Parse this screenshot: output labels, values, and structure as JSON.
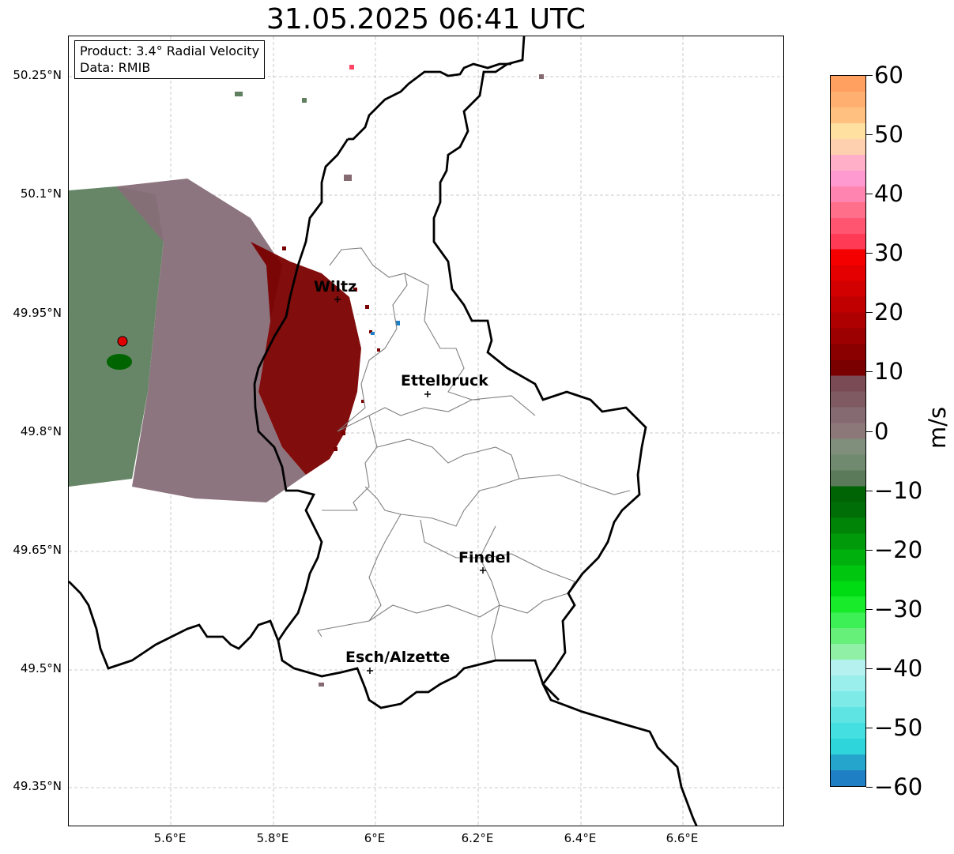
{
  "title": "31.05.2025 06:41 UTC",
  "info": {
    "product": "Product: 3.4° Radial Velocity",
    "data_source": "Data: RMIB"
  },
  "axes": {
    "y_ticks": [
      "50.25°N",
      "50.1°N",
      "49.95°N",
      "49.8°N",
      "49.65°N",
      "49.5°N",
      "49.35°N"
    ],
    "x_ticks": [
      "5.6°E",
      "5.8°E",
      "6°E",
      "6.2°E",
      "6.4°E",
      "6.6°E"
    ]
  },
  "cities": [
    {
      "name": "Wiltz"
    },
    {
      "name": "Ettelbruck"
    },
    {
      "name": "Findel"
    },
    {
      "name": "Esch/Alzette"
    }
  ],
  "colorbar": {
    "label": "m/s",
    "ticks": [
      "60",
      "50",
      "40",
      "30",
      "20",
      "10",
      "0",
      "−10",
      "−20",
      "−30",
      "−40",
      "−50",
      "−60"
    ],
    "range": [
      -60,
      60
    ],
    "colors": [
      "#1f7fc4",
      "#26a5cc",
      "#2ed6dc",
      "#44dfe0",
      "#5ee5e3",
      "#7deae8",
      "#9aefec",
      "#b5f1ef",
      "#8ff0a6",
      "#66f07a",
      "#3df055",
      "#18ec2a",
      "#00dc14",
      "#00c610",
      "#00b00c",
      "#009a0a",
      "#008408",
      "#006e06",
      "#006405",
      "#5a7a5a",
      "#6f8a6f",
      "#7f8f7c",
      "#8c7878",
      "#866a72",
      "#7f5a62",
      "#7a4a55",
      "#7a0000",
      "#8a0000",
      "#9c0000",
      "#ae0000",
      "#c00000",
      "#d20000",
      "#e40000",
      "#f50000",
      "#ff3a55",
      "#ff5570",
      "#ff6f8a",
      "#ff85b0",
      "#ff9ad0",
      "#ffb0c8",
      "#ffd0b0",
      "#ffe0a0",
      "#ffc080",
      "#ffb070",
      "#ffa060"
    ]
  },
  "colors": {
    "border_country": "#000000",
    "border_canton": "#808080",
    "grid": "#bbbbbb",
    "radar_site": "#e00000"
  }
}
